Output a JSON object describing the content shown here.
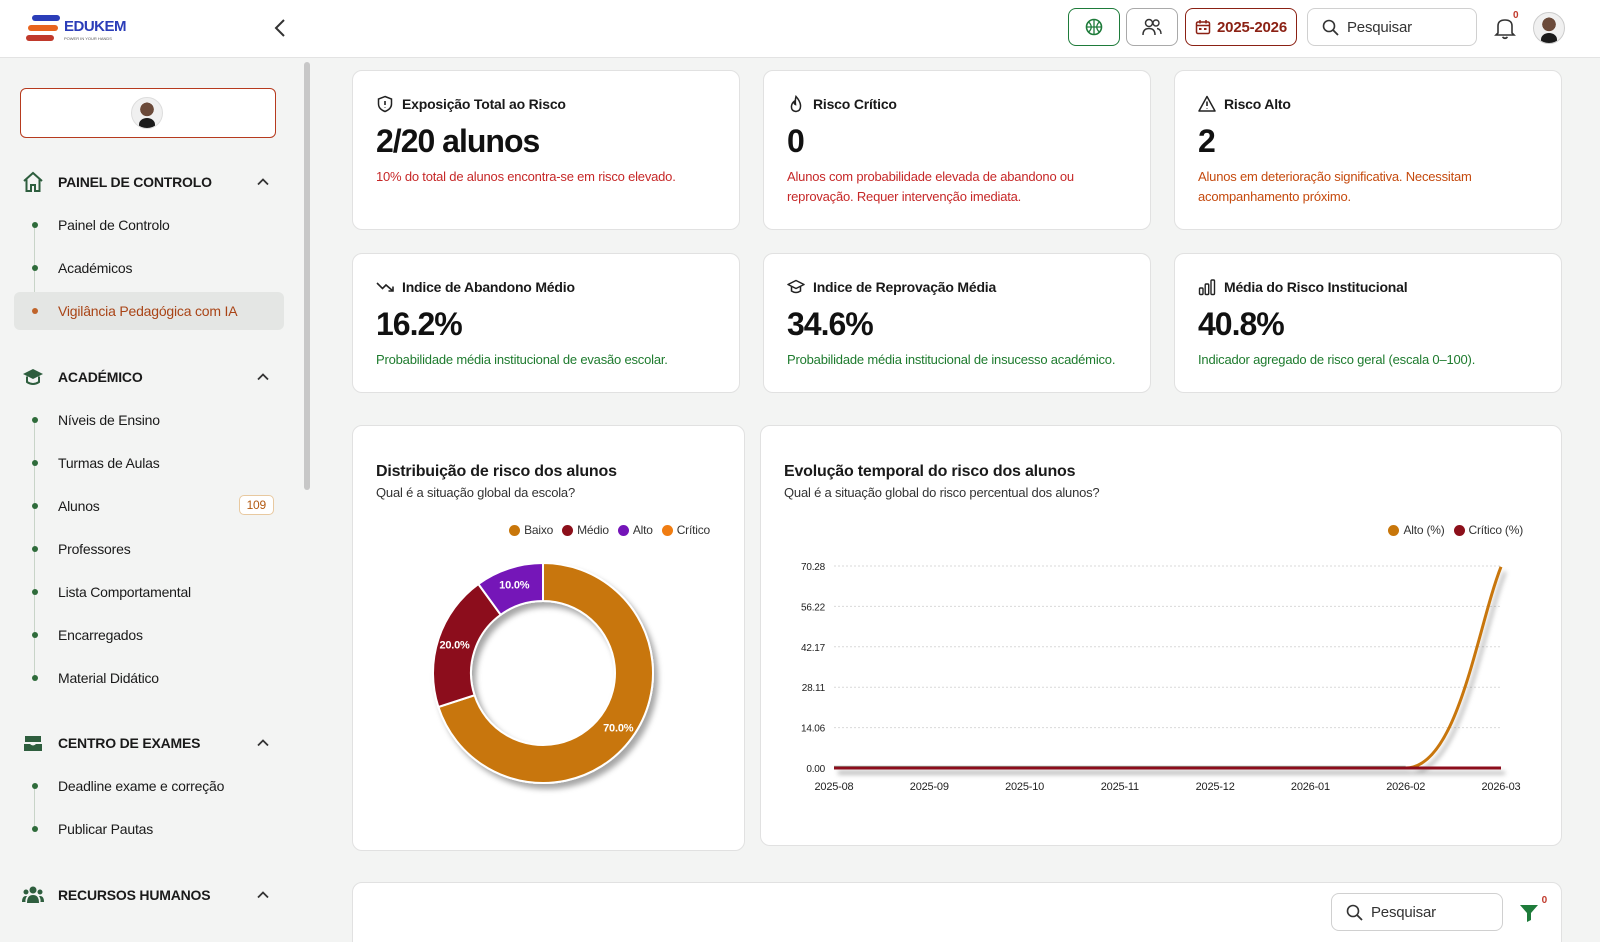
{
  "brand": {
    "name": "EDUKEM",
    "tagline": "POWER IN YOUR HANDS"
  },
  "topbar": {
    "year_label": "2025-2026",
    "search_placeholder": "Pesquisar",
    "notification_count": "0"
  },
  "sidebar": {
    "sections": [
      {
        "title": "PAINEL DE CONTROLO",
        "items": [
          "Painel de Controlo",
          "Académicos",
          "Vigilância Pedagógica com IA"
        ]
      },
      {
        "title": "ACADÉMICO",
        "items": [
          "Níveis de Ensino",
          "Turmas de Aulas",
          "Alunos",
          "Professores",
          "Lista Comportamental",
          "Encarregados",
          "Material Didático"
        ]
      },
      {
        "title": "CENTRO DE EXAMES",
        "items": [
          "Deadline exame e correção",
          "Publicar Pautas"
        ]
      },
      {
        "title": "RECURSOS HUMANOS"
      }
    ],
    "alunos_badge": "109"
  },
  "stats": [
    {
      "title": "Exposição Total ao Risco",
      "value": "2/20 alunos",
      "desc": "10% do total de alunos encontra-se em risco elevado."
    },
    {
      "title": "Risco Crítico",
      "value": "0",
      "desc": "Alunos com probabilidade elevada de abandono ou reprovação. Requer intervenção imediata."
    },
    {
      "title": "Risco Alto",
      "value": "2",
      "desc": "Alunos em deterioração significativa. Necessitam acompanhamento próximo."
    },
    {
      "title": "Indice de Abandono Médio",
      "value": "16.2%",
      "desc": "Probabilidade média institucional de evasão escolar."
    },
    {
      "title": "Indice de Reprovação Média",
      "value": "34.6%",
      "desc": "Probabilidade média institucional de insucesso académico."
    },
    {
      "title": "Média do Risco Institucional",
      "value": "40.8%",
      "desc": "Indicador agregado de risco geral (escala 0–100)."
    }
  ],
  "colors": {
    "baixo": "#c8760a",
    "medio": "#8c0f1a",
    "alto": "#7414b8",
    "critico": "#f07d12",
    "alto_line": "#c8760a",
    "critico_line": "#8c0f1a"
  },
  "chart_data": [
    {
      "type": "pie",
      "title": "Distribuição de risco dos alunos",
      "subtitle": "Qual é a situação global da escola?",
      "categories": [
        "Baixo",
        "Médio",
        "Alto",
        "Crítico"
      ],
      "values": [
        70.0,
        20.0,
        10.0,
        0.0
      ],
      "labels": [
        "70.0%",
        "20.0%",
        "10.0%",
        ""
      ],
      "legend": "top-right"
    },
    {
      "type": "line",
      "title": "Evolução temporal do risco dos alunos",
      "subtitle": "Qual é a situação global do risco percentual dos alunos?",
      "x": [
        "2025-08",
        "2025-09",
        "2025-10",
        "2025-11",
        "2025-12",
        "2026-01",
        "2026-02",
        "2026-03"
      ],
      "yticks": [
        "0.00",
        "14.06",
        "28.11",
        "42.17",
        "56.22",
        "70.28"
      ],
      "ylim": [
        0,
        70.28
      ],
      "series": [
        {
          "name": "Alto (%)",
          "values": [
            0,
            0,
            0,
            0,
            0,
            0,
            0,
            70
          ]
        },
        {
          "name": "Crítico (%)",
          "values": [
            0,
            0,
            0,
            0,
            0,
            0,
            0,
            0
          ]
        }
      ],
      "legend": "top-right"
    }
  ],
  "table": {
    "search_placeholder": "Pesquisar",
    "filter_count": "0"
  }
}
